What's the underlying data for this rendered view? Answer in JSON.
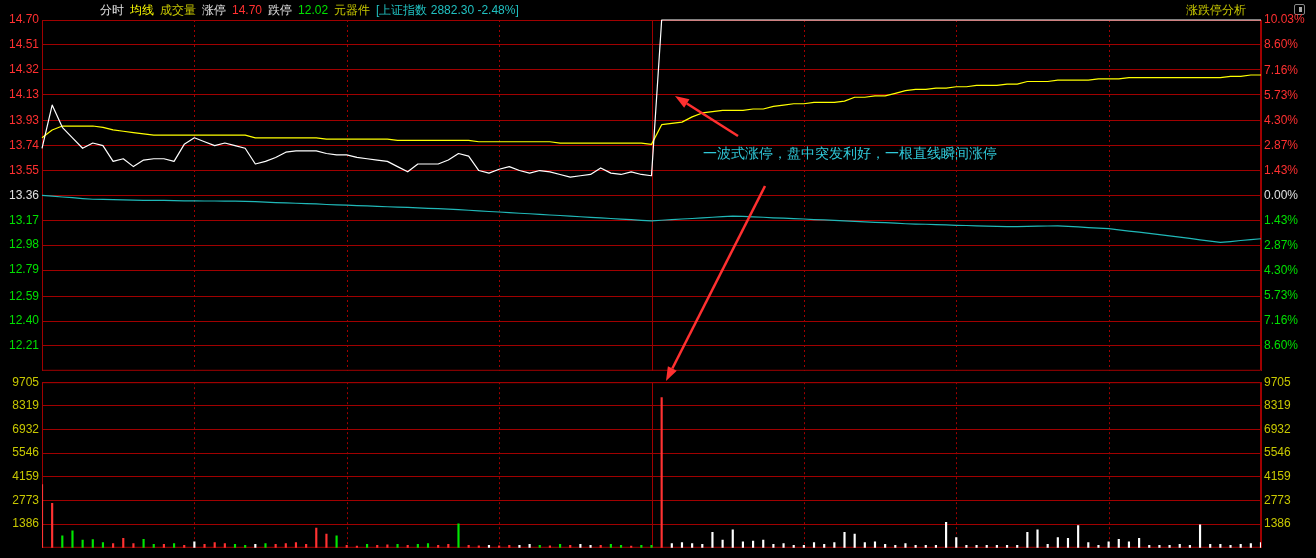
{
  "chart_data": [
    {
      "type": "line",
      "annotations": [
        "分时",
        "均线",
        "成交量",
        "涨停",
        "14.70",
        "跌停",
        "12.02",
        "元器件",
        "[上证指数 2882.30 -2.48%]",
        "涨跌停分析",
        "一波式涨停，盘中突发利好，一根直线瞬间涨停"
      ],
      "categories": [
        null,
        null,
        null,
        null,
        null,
        null,
        null,
        null,
        null,
        null,
        null,
        null,
        null,
        null,
        null,
        null,
        null,
        null,
        null,
        null,
        null,
        null,
        null,
        null,
        null,
        null,
        null,
        null,
        null,
        null,
        null,
        null,
        null,
        null,
        null,
        null,
        null,
        null,
        null,
        null,
        null,
        null,
        null,
        null,
        null,
        null,
        null,
        null,
        null,
        null,
        null,
        null,
        null,
        null,
        null,
        null,
        null,
        null,
        null,
        null,
        null,
        null,
        null,
        null,
        null,
        null,
        null,
        null,
        null,
        null,
        null,
        null,
        null,
        null,
        null,
        null,
        null,
        null,
        null,
        null,
        null,
        null,
        null,
        null,
        null,
        null,
        null,
        null,
        null,
        null,
        null,
        null,
        null,
        null,
        null,
        null,
        null,
        null,
        null,
        null,
        null,
        null,
        null,
        null,
        null,
        null,
        null,
        null,
        null,
        null,
        null,
        null,
        null,
        null,
        null,
        null,
        null,
        null,
        null,
        null,
        null
      ],
      "ylim": [
        12.02,
        14.7
      ],
      "yticks": [
        {
          "value": 14.7,
          "label": "14.70"
        },
        14.51,
        14.32,
        14.13,
        13.93,
        13.74,
        13.55,
        13.36,
        13.17,
        12.98,
        12.79,
        12.59,
        {
          "value": 12.4,
          "label": "12.40"
        },
        12.21
      ],
      "y2lim": [
        -10.03,
        10.03
      ],
      "y2ticks": [
        {
          "value": 10.03,
          "label": "10.03%"
        },
        {
          "value": 8.6,
          "label": "8.60%"
        },
        {
          "value": 7.16,
          "label": "7.16%"
        },
        {
          "value": 5.73,
          "label": "5.73%"
        },
        {
          "value": 4.3,
          "label": "4.30%"
        },
        {
          "value": 2.87,
          "label": "2.87%"
        },
        {
          "value": 1.43,
          "label": "1.43%"
        },
        {
          "value": 0,
          "label": "0.00%"
        },
        {
          "value": -1.43,
          "label": "1.43%"
        },
        {
          "value": -2.87,
          "label": "2.87%"
        },
        {
          "value": -4.3,
          "label": "4.30%"
        },
        {
          "value": -5.73,
          "label": "5.73%"
        },
        {
          "value": -7.16,
          "label": "7.16%"
        },
        {
          "value": -8.6,
          "label": "8.60%"
        }
      ],
      "grid": true,
      "tick_labels": "y",
      "marker": "none",
      "line_style": "solid",
      "series": [
        {
          "color": "#ffffff",
          "values": [
            13.72,
            14.05,
            13.88,
            13.8,
            13.72,
            13.76,
            13.74,
            13.62,
            13.64,
            13.58,
            13.63,
            13.64,
            13.64,
            13.62,
            13.75,
            13.8,
            13.77,
            13.74,
            13.76,
            13.74,
            13.72,
            13.6,
            13.62,
            13.65,
            13.69,
            13.7,
            13.7,
            13.7,
            13.68,
            13.67,
            13.67,
            13.65,
            13.64,
            13.63,
            13.62,
            13.58,
            13.54,
            13.6,
            13.6,
            13.6,
            13.63,
            13.68,
            13.66,
            13.55,
            13.53,
            13.56,
            13.58,
            13.55,
            13.53,
            13.55,
            13.54,
            13.52,
            13.5,
            13.51,
            13.52,
            13.57,
            13.53,
            13.52,
            13.54,
            13.52,
            13.51,
            14.7,
            14.7,
            14.7,
            14.7,
            14.7,
            14.7,
            14.7,
            14.7,
            14.7,
            14.7,
            14.7,
            14.7,
            14.7,
            14.7,
            14.7,
            14.7,
            14.7,
            14.7,
            14.7,
            14.7,
            14.7,
            14.7,
            14.7,
            14.7,
            14.7,
            14.7,
            14.7,
            14.7,
            14.7,
            14.7,
            14.7,
            14.7,
            14.7,
            14.7,
            14.7,
            14.7,
            14.7,
            14.7,
            14.7,
            14.7,
            14.7,
            14.7,
            14.7,
            14.7,
            14.7,
            14.7,
            14.7,
            14.7,
            14.7,
            14.7,
            14.7,
            14.7,
            14.7,
            14.7,
            14.7,
            14.7,
            14.7,
            14.7,
            14.7,
            14.7
          ]
        },
        {
          "color": "#ffff00",
          "values": [
            13.8,
            13.86,
            13.89,
            13.89,
            13.89,
            13.89,
            13.88,
            13.86,
            13.85,
            13.84,
            13.83,
            13.82,
            13.82,
            13.82,
            13.82,
            13.82,
            13.82,
            13.82,
            13.82,
            13.82,
            13.82,
            13.8,
            13.8,
            13.8,
            13.8,
            13.8,
            13.8,
            13.8,
            13.79,
            13.79,
            13.79,
            13.79,
            13.79,
            13.79,
            13.79,
            13.78,
            13.78,
            13.78,
            13.78,
            13.78,
            13.78,
            13.78,
            13.78,
            13.77,
            13.77,
            13.77,
            13.77,
            13.77,
            13.77,
            13.77,
            13.77,
            13.76,
            13.76,
            13.76,
            13.76,
            13.76,
            13.76,
            13.76,
            13.76,
            13.76,
            13.75,
            13.9,
            13.91,
            13.92,
            13.96,
            13.99,
            14.0,
            14.01,
            14.01,
            14.01,
            14.02,
            14.02,
            14.04,
            14.05,
            14.06,
            14.06,
            14.07,
            14.07,
            14.07,
            14.08,
            14.11,
            14.11,
            14.12,
            14.12,
            14.14,
            14.16,
            14.17,
            14.17,
            14.18,
            14.18,
            14.19,
            14.19,
            14.2,
            14.2,
            14.2,
            14.21,
            14.21,
            14.23,
            14.23,
            14.23,
            14.24,
            14.24,
            14.24,
            14.24,
            14.25,
            14.25,
            14.25,
            14.26,
            14.26,
            14.26,
            14.26,
            14.26,
            14.26,
            14.26,
            14.26,
            14.26,
            14.26,
            14.27,
            14.27,
            14.28,
            14.28
          ]
        },
        {
          "color": "#20b8b8",
          "axis": "y2",
          "values": [
            0,
            -0.04,
            -0.09,
            -0.13,
            -0.18,
            -0.22,
            -0.23,
            -0.24,
            -0.26,
            -0.27,
            -0.28,
            -0.29,
            -0.29,
            -0.3,
            -0.31,
            -0.31,
            -0.32,
            -0.32,
            -0.33,
            -0.33,
            -0.34,
            -0.36,
            -0.38,
            -0.41,
            -0.43,
            -0.45,
            -0.47,
            -0.49,
            -0.52,
            -0.54,
            -0.56,
            -0.58,
            -0.6,
            -0.63,
            -0.65,
            -0.67,
            -0.69,
            -0.71,
            -0.74,
            -0.76,
            -0.78,
            -0.81,
            -0.85,
            -0.88,
            -0.92,
            -0.95,
            -0.98,
            -1.02,
            -1.05,
            -1.09,
            -1.12,
            -1.15,
            -1.19,
            -1.22,
            -1.26,
            -1.29,
            -1.32,
            -1.36,
            -1.39,
            -1.43,
            -1.46,
            -1.42,
            -1.39,
            -1.35,
            -1.32,
            -1.28,
            -1.25,
            -1.21,
            -1.18,
            -1.2,
            -1.23,
            -1.25,
            -1.28,
            -1.3,
            -1.33,
            -1.35,
            -1.38,
            -1.4,
            -1.43,
            -1.46,
            -1.48,
            -1.51,
            -1.54,
            -1.56,
            -1.59,
            -1.62,
            -1.64,
            -1.65,
            -1.67,
            -1.69,
            -1.71,
            -1.72,
            -1.74,
            -1.76,
            -1.77,
            -1.79,
            -1.78,
            -1.77,
            -1.76,
            -1.75,
            -1.74,
            -1.77,
            -1.8,
            -1.84,
            -1.87,
            -1.9,
            -1.97,
            -2.04,
            -2.1,
            -2.17,
            -2.24,
            -2.31,
            -2.39,
            -2.46,
            -2.54,
            -2.61,
            -2.69,
            -2.64,
            -2.58,
            -2.53,
            -2.48
          ]
        }
      ]
    },
    {
      "type": "bar",
      "categories": [
        null,
        null,
        null,
        null,
        null,
        null,
        null,
        null,
        null,
        null,
        null,
        null,
        null,
        null,
        null,
        null,
        null,
        null,
        null,
        null,
        null,
        null,
        null,
        null,
        null,
        null,
        null,
        null,
        null,
        null,
        null,
        null,
        null,
        null,
        null,
        null,
        null,
        null,
        null,
        null,
        null,
        null,
        null,
        null,
        null,
        null,
        null,
        null,
        null,
        null,
        null,
        null,
        null,
        null,
        null,
        null,
        null,
        null,
        null,
        null,
        null,
        null,
        null,
        null,
        null,
        null,
        null,
        null,
        null,
        null,
        null,
        null,
        null,
        null,
        null,
        null,
        null,
        null,
        null,
        null,
        null,
        null,
        null,
        null,
        null,
        null,
        null,
        null,
        null,
        null,
        null,
        null,
        null,
        null,
        null,
        null,
        null,
        null,
        null,
        null,
        null,
        null,
        null,
        null,
        null,
        null,
        null,
        null,
        null,
        null,
        null,
        null,
        null,
        null,
        null,
        null,
        null,
        null,
        null,
        null,
        null
      ],
      "ylim": [
        0,
        9705
      ],
      "yticks": [
        1386,
        2773,
        4159,
        5546,
        6932,
        8319,
        9705
      ],
      "y2lim": [
        0,
        9705
      ],
      "y2ticks": [
        1386,
        2773,
        4159,
        5546,
        6932,
        8319,
        9705
      ],
      "grid": true,
      "tick_labels": "y",
      "values": [
        3700,
        2600,
        700,
        1000,
        450,
        480,
        300,
        250,
        550,
        250,
        500,
        200,
        200,
        250,
        150,
        350,
        200,
        300,
        250,
        200,
        150,
        200,
        250,
        200,
        250,
        300,
        200,
        1150,
        800,
        700,
        150,
        100,
        200,
        150,
        180,
        200,
        150,
        200,
        250,
        150,
        200,
        1400,
        150,
        120,
        150,
        120,
        150,
        150,
        200,
        150,
        120,
        200,
        150,
        200,
        150,
        150,
        200,
        150,
        100,
        150,
        150,
        8800,
        250,
        300,
        250,
        200,
        900,
        450,
        1050,
        350,
        400,
        450,
        200,
        250,
        150,
        150,
        300,
        200,
        300,
        900,
        800,
        300,
        350,
        200,
        150,
        250,
        150,
        150,
        150,
        1500,
        600,
        150,
        150,
        150,
        150,
        150,
        150,
        900,
        1050,
        200,
        600,
        550,
        1300,
        300,
        150,
        350,
        500,
        350,
        550,
        150,
        150,
        150,
        200,
        150,
        1350,
        200,
        200,
        150,
        200,
        250,
        300
      ],
      "colors": [
        "#ff3232",
        "#ff3232",
        "#00e600",
        "#00e600",
        "#00e600",
        "#00e600",
        "#00e600",
        "#ff3232",
        "#ff3232",
        "#ff3232",
        "#00e600",
        "#00e600",
        "#ff3232",
        "#00e600",
        "#ff3232",
        "#ffffff",
        "#ff3232",
        "#ff3232",
        "#ff3232",
        "#00e600",
        "#00e600",
        "#ffffff",
        "#00e600",
        "#ff3232",
        "#ff3232",
        "#ff3232",
        "#ff3232",
        "#ff3232",
        "#ff3232",
        "#00e600",
        "#ff3232",
        "#ff3232",
        "#00e600",
        "#ff3232",
        "#ff3232",
        "#00e600",
        "#ff3232",
        "#00e600",
        "#00e600",
        "#ff3232",
        "#ff3232",
        "#00e600",
        "#ff3232",
        "#ff3232",
        "#ffffff",
        "#ff3232",
        "#ff3232",
        "#ffffff",
        "#ffffff",
        "#00e600",
        "#ff3232",
        "#00e600",
        "#ff3232",
        "#ffffff",
        "#ffffff",
        "#ff3232",
        "#00e600",
        "#00e600",
        "#ff3232",
        "#00e600",
        "#00e600",
        "#ff3232",
        "#ffffff",
        "#ffffff",
        "#ffffff",
        "#ffffff",
        "#ffffff",
        "#ffffff",
        "#ffffff",
        "#ffffff",
        "#ffffff",
        "#ffffff",
        "#ffffff",
        "#ffffff",
        "#ffffff",
        "#ffffff",
        "#ffffff",
        "#ffffff",
        "#ffffff",
        "#ffffff",
        "#ffffff",
        "#ffffff",
        "#ffffff",
        "#ffffff",
        "#ffffff",
        "#ffffff",
        "#ffffff",
        "#ffffff",
        "#ffffff",
        "#ffffff",
        "#ffffff",
        "#ffffff",
        "#ffffff",
        "#ffffff",
        "#ffffff",
        "#ffffff",
        "#ffffff",
        "#ffffff",
        "#ffffff",
        "#ffffff",
        "#ffffff",
        "#ffffff",
        "#ffffff",
        "#ffffff",
        "#ffffff",
        "#ffffff",
        "#ffffff",
        "#ffffff",
        "#ffffff",
        "#ffffff",
        "#ffffff",
        "#ffffff",
        "#ffffff",
        "#ffffff",
        "#ffffff",
        "#ffffff",
        "#ffffff",
        "#ffffff",
        "#ffffff",
        "#ffffff",
        "#ffffff"
      ]
    }
  ]
}
